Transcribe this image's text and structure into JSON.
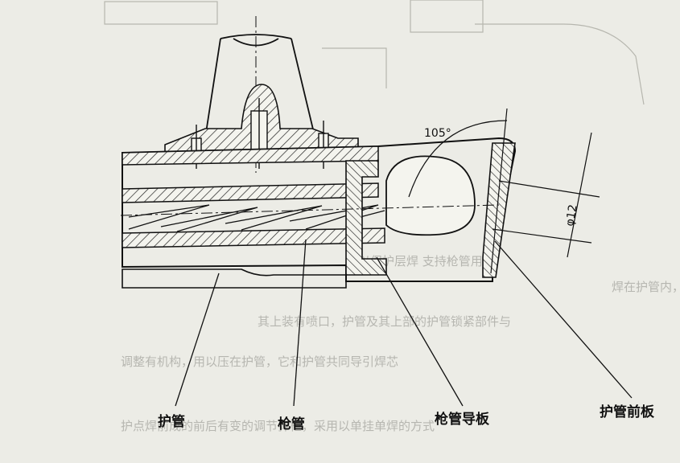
{
  "labels": {
    "guard_tube": "护管",
    "gun_tube": "枪管",
    "gun_tube_guide_plate": "枪管导板",
    "guard_tube_front_plate": "护管前板"
  },
  "dimensions": {
    "angle": "105°",
    "diameter": "φ12"
  },
  "bleed_through_text": [
    "接以保护层焊    支持枪管用",
    "焊在护管内，      末端",
    "其上装有喷口，护管及其上部的护管锁紧部件与",
    "调整有机构，用以压在护管，它和护管共同导引焊芯",
    "护点焊前成的前后有变的调节弹柜，采用以单挂单焊的方式"
  ]
}
